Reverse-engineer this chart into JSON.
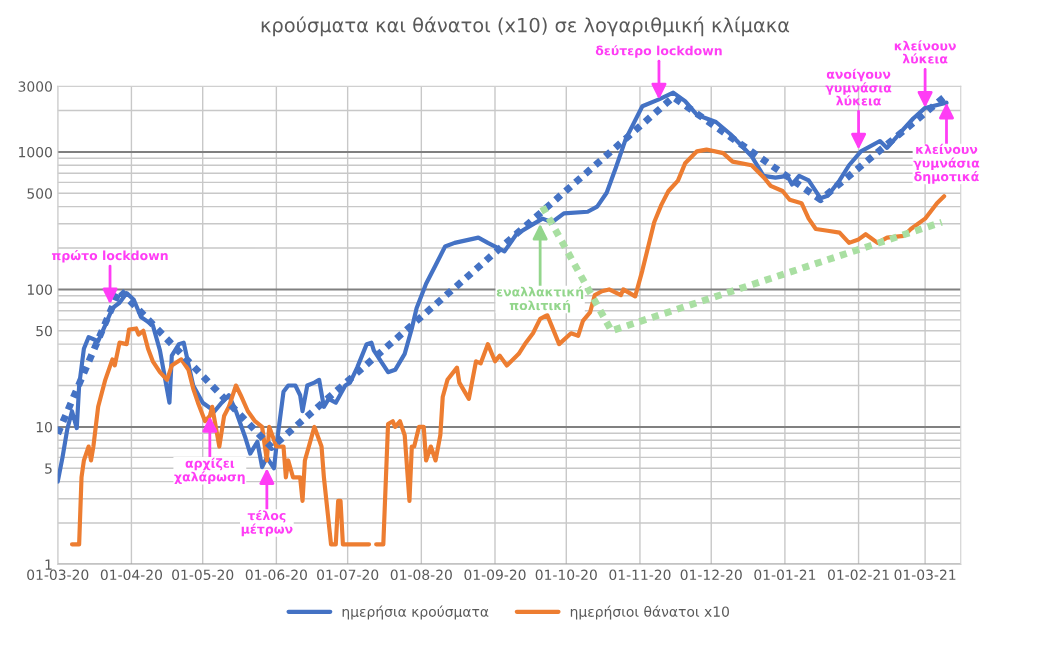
{
  "chart_data": {
    "type": "line",
    "title": "κρούσματα και θάνατοι (x10) σε λογαριθμική κλίμακα",
    "log": true,
    "grid": true,
    "legend": "bottom",
    "xlim": [
      "2020-03-01",
      "2021-03-16"
    ],
    "xticks": [
      {
        "value": "2020-03-01",
        "label": "01-03-20"
      },
      {
        "value": "2020-04-01",
        "label": "01-04-20"
      },
      {
        "value": "2020-05-01",
        "label": "01-05-20"
      },
      {
        "value": "2020-06-01",
        "label": "01-06-20"
      },
      {
        "value": "2020-07-01",
        "label": "01-07-20"
      },
      {
        "value": "2020-08-01",
        "label": "01-08-20"
      },
      {
        "value": "2020-09-01",
        "label": "01-09-20"
      },
      {
        "value": "2020-10-01",
        "label": "01-10-20"
      },
      {
        "value": "2020-11-01",
        "label": "01-11-20"
      },
      {
        "value": "2020-12-01",
        "label": "01-12-20"
      },
      {
        "value": "2021-01-01",
        "label": "01-01-21"
      },
      {
        "value": "2021-02-01",
        "label": "01-02-21"
      },
      {
        "value": "2021-03-01",
        "label": "01-03-21"
      }
    ],
    "ylim": [
      1,
      3000
    ],
    "yticks": [
      1,
      {
        "value": 2,
        "label": null
      },
      {
        "value": 3,
        "label": null
      },
      {
        "value": 4,
        "label": null
      },
      5,
      {
        "value": 6,
        "label": null
      },
      {
        "value": 7,
        "label": null
      },
      {
        "value": 8,
        "label": null
      },
      {
        "value": 9,
        "label": null
      },
      10,
      {
        "value": 20,
        "label": null
      },
      {
        "value": 30,
        "label": null
      },
      {
        "value": 40,
        "label": null
      },
      50,
      {
        "value": 60,
        "label": null
      },
      {
        "value": 70,
        "label": null
      },
      {
        "value": 80,
        "label": null
      },
      {
        "value": 90,
        "label": null
      },
      100,
      {
        "value": 200,
        "label": null
      },
      {
        "value": 300,
        "label": null
      },
      {
        "value": 400,
        "label": null
      },
      500,
      {
        "value": 600,
        "label": null
      },
      {
        "value": 700,
        "label": null
      },
      {
        "value": 800,
        "label": null
      },
      {
        "value": 900,
        "label": null
      },
      1000,
      {
        "value": 2000,
        "label": null
      },
      3000
    ],
    "series": [
      {
        "name": "ημερήσια κρούσματα",
        "color": "#4472c4",
        "x": [
          "2020-03-01",
          "2020-03-03",
          "2020-03-05",
          "2020-03-07",
          "2020-03-09",
          "2020-03-10",
          "2020-03-12",
          "2020-03-14",
          "2020-03-18",
          "2020-03-21",
          "2020-03-24",
          "2020-03-27",
          "2020-03-30",
          "2020-04-02",
          "2020-04-05",
          "2020-04-10",
          "2020-04-13",
          "2020-04-17",
          "2020-04-18",
          "2020-04-21",
          "2020-04-23",
          "2020-04-27",
          "2020-05-01",
          "2020-05-06",
          "2020-05-09",
          "2020-05-12",
          "2020-05-15",
          "2020-05-19",
          "2020-05-21",
          "2020-05-24",
          "2020-05-26",
          "2020-05-28",
          "2020-05-31",
          "2020-06-01",
          "2020-06-04",
          "2020-06-06",
          "2020-06-09",
          "2020-06-11",
          "2020-06-12",
          "2020-06-14",
          "2020-06-17",
          "2020-06-19",
          "2020-06-21",
          "2020-06-23",
          "2020-06-26",
          "2020-06-30",
          "2020-07-02",
          "2020-07-05",
          "2020-07-09",
          "2020-07-11",
          "2020-07-12",
          "2020-07-18",
          "2020-07-21",
          "2020-07-25",
          "2020-07-28",
          "2020-07-30",
          "2020-08-03",
          "2020-08-07",
          "2020-08-11",
          "2020-08-15",
          "2020-08-25",
          "2020-08-29",
          "2020-09-05",
          "2020-09-10",
          "2020-09-16",
          "2020-09-21",
          "2020-09-25",
          "2020-09-30",
          "2020-10-10",
          "2020-10-14",
          "2020-10-18",
          "2020-10-22",
          "2020-10-26",
          "2020-11-02",
          "2020-11-09",
          "2020-11-15",
          "2020-11-20",
          "2020-11-25",
          "2020-11-29",
          "2020-12-03",
          "2020-12-09",
          "2020-12-14",
          "2020-12-18",
          "2020-12-23",
          "2020-12-28",
          "2021-01-02",
          "2021-01-04",
          "2021-01-07",
          "2021-01-11",
          "2021-01-16",
          "2021-01-19",
          "2021-01-24",
          "2021-01-28",
          "2021-02-02",
          "2021-02-10",
          "2021-02-13",
          "2021-02-20",
          "2021-02-24",
          "2021-03-01",
          "2021-03-10"
        ],
        "values": [
          4.0,
          6.0,
          9.6,
          13,
          9.8,
          20,
          37,
          45,
          42,
          55,
          73,
          80,
          94,
          84,
          63,
          55,
          36,
          15,
          33,
          40,
          41,
          20,
          15,
          13,
          15,
          17,
          13,
          8.3,
          6.4,
          7.8,
          5.1,
          6.0,
          5.0,
          7.2,
          18,
          20,
          20,
          17,
          13,
          20,
          21,
          22,
          14,
          16,
          15,
          20,
          21,
          27,
          40,
          41,
          36,
          25,
          26,
          34,
          52,
          73,
          110,
          150,
          205,
          218,
          238,
          218,
          189,
          252,
          291,
          327,
          308,
          357,
          367,
          400,
          505,
          780,
          1240,
          2150,
          2410,
          2700,
          2340,
          1860,
          1750,
          1650,
          1350,
          1100,
          930,
          670,
          650,
          670,
          580,
          670,
          620,
          460,
          480,
          620,
          800,
          1010,
          1200,
          1070,
          1470,
          1750,
          2090,
          2280
        ]
      },
      {
        "name": "ημερήσιοι θάνατοι x10",
        "color": "#ed7d31",
        "x": [
          "2020-03-07",
          "2020-03-10",
          "2020-03-11",
          "2020-03-12",
          "2020-03-14",
          "2020-03-15",
          "2020-03-16",
          "2020-03-18",
          "2020-03-21",
          "2020-03-24",
          "2020-03-25",
          "2020-03-27",
          "2020-03-30",
          "2020-03-31",
          "2020-04-03",
          "2020-04-04",
          "2020-04-06",
          "2020-04-08",
          "2020-04-10",
          "2020-04-13",
          "2020-04-16",
          "2020-04-18",
          "2020-04-22",
          "2020-04-25",
          "2020-04-27",
          "2020-04-29",
          "2020-05-02",
          "2020-05-04",
          "2020-05-05",
          "2020-05-08",
          "2020-05-10",
          "2020-05-12",
          "2020-05-15",
          "2020-05-17",
          "2020-05-20",
          "2020-05-23",
          "2020-05-26",
          "2020-05-28",
          "2020-05-29",
          "2020-06-01",
          "2020-06-04",
          "2020-06-05",
          "2020-06-06",
          "2020-06-08",
          "2020-06-11",
          "2020-06-12",
          "2020-06-13",
          "2020-06-17",
          "2020-06-20",
          "2020-06-21",
          "2020-06-24",
          "2020-06-26",
          "2020-06-27",
          "2020-06-28",
          "2020-06-29",
          "2020-07-10",
          "2020-07-11",
          "2020-07-13",
          "2020-07-16",
          "2020-07-18",
          "2020-07-20",
          "2020-07-21",
          "2020-07-23",
          "2020-07-25",
          "2020-07-27",
          "2020-07-28",
          "2020-07-29",
          "2020-07-31",
          "2020-08-02",
          "2020-08-03",
          "2020-08-05",
          "2020-08-07",
          "2020-08-09",
          "2020-08-10",
          "2020-08-12",
          "2020-08-16",
          "2020-08-17",
          "2020-08-21",
          "2020-08-24",
          "2020-08-26",
          "2020-08-29",
          "2020-09-01",
          "2020-09-03",
          "2020-09-06",
          "2020-09-11",
          "2020-09-14",
          "2020-09-17",
          "2020-09-20",
          "2020-09-23",
          "2020-09-28",
          "2020-10-03",
          "2020-10-06",
          "2020-10-08",
          "2020-10-11",
          "2020-10-13",
          "2020-10-16",
          "2020-10-19",
          "2020-10-24",
          "2020-10-25",
          "2020-10-30",
          "2020-11-02",
          "2020-11-07",
          "2020-11-10",
          "2020-11-13",
          "2020-11-17",
          "2020-11-20",
          "2020-11-25",
          "2020-11-29",
          "2020-12-06",
          "2020-12-10",
          "2020-12-18",
          "2020-12-23",
          "2020-12-26",
          "2020-12-31",
          "2021-01-03",
          "2021-01-08",
          "2021-01-11",
          "2021-01-14",
          "2021-01-19",
          "2021-01-24",
          "2021-01-28",
          "2021-02-01",
          "2021-02-04",
          "2021-02-09",
          "2021-02-13",
          "2021-02-20",
          "2021-02-23",
          "2021-03-01",
          "2021-03-06",
          "2021-03-09"
        ],
        "values": [
          1.4,
          1.4,
          4.3,
          5.7,
          7.2,
          5.7,
          7.2,
          14,
          22,
          31,
          28,
          41,
          40,
          51,
          52,
          47,
          50,
          37,
          30,
          25,
          22,
          28,
          31,
          26,
          19,
          15,
          11,
          12,
          14,
          7.2,
          12,
          14,
          20,
          17,
          13,
          11,
          10,
          5.7,
          10,
          7.2,
          7.2,
          4.3,
          5.7,
          4.3,
          4.3,
          2.9,
          5.7,
          10,
          7.2,
          4.3,
          1.4,
          1.4,
          2.9,
          2.9,
          1.4,
          1.4,
          null,
          1.4,
          1.4,
          10.5,
          11,
          10,
          11,
          8.7,
          2.9,
          7.2,
          7.2,
          10,
          10,
          5.7,
          7.2,
          5.7,
          8.7,
          16.5,
          22,
          27,
          21,
          16,
          30,
          29,
          40,
          30,
          33,
          28,
          34,
          41,
          48,
          61,
          65,
          40,
          48,
          46,
          59,
          68,
          91,
          97,
          100,
          91,
          100,
          89,
          137,
          308,
          412,
          520,
          618,
          826,
          1010,
          1040,
          980,
          850,
          800,
          655,
          567,
          520,
          449,
          424,
          327,
          275,
          267,
          259,
          218,
          231,
          252,
          218,
          238,
          245,
          275,
          327,
          424,
          476
        ]
      },
      {
        "color": "#4472c4",
        "line_style": "dotted",
        "x": [
          "2020-03-01",
          "2020-03-27",
          "2020-05-30",
          "2020-11-15",
          "2021-01-16",
          "2021-03-09"
        ],
        "values": [
          8.9,
          99,
          7.1,
          2500,
          450,
          2500
        ]
      },
      {
        "color": "#a9dfa2",
        "line_style": "dotted",
        "x": [
          "2020-09-21",
          "2020-10-20",
          "2021-03-08"
        ],
        "values": [
          400,
          50,
          308
        ]
      }
    ],
    "annotations": [
      {
        "text": "πρώτο lockdown",
        "x": "2020-03-23",
        "y": 78
      },
      {
        "text": "αρχίζει χαλάρωση",
        "x": "2020-05-04",
        "y": 12
      },
      {
        "text": "τέλος μέτρων",
        "x": "2020-05-28",
        "y": 5.0
      },
      {
        "text": "δεύτερο lockdown",
        "x": "2020-11-09",
        "y": 2410
      },
      {
        "text": "ανοίγουν γυμνάσια λύκεια",
        "x": "2021-02-01",
        "y": 1040
      },
      {
        "text": "κλείνουν λύκεια",
        "x": "2021-03-01",
        "y": 2100
      },
      {
        "text": "κλείνουν γυμνάσια δημοτικά",
        "x": "2021-03-10",
        "y": 2280
      },
      {
        "text": "εναλλακτική πολιτική",
        "x": "2020-09-20",
        "y": 300
      }
    ]
  }
}
